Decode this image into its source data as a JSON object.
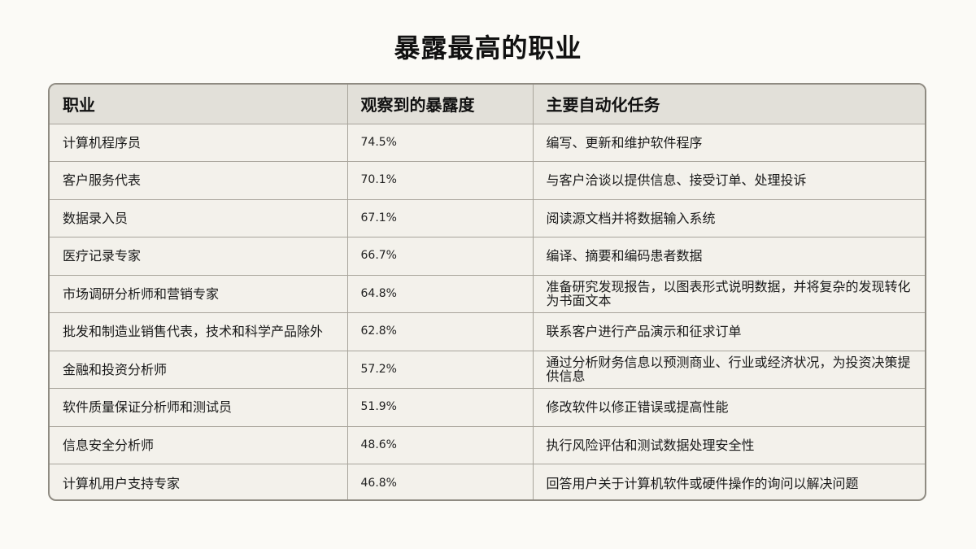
{
  "title": "暴露最高的职业",
  "table": {
    "headers": [
      "职业",
      "观察到的暴露度",
      "主要自动化任务"
    ],
    "rows": [
      {
        "occupation": "计算机程序员",
        "exposure": "74.5%",
        "tasks": "编写、更新和维护软件程序"
      },
      {
        "occupation": "客户服务代表",
        "exposure": "70.1%",
        "tasks": "与客户洽谈以提供信息、接受订单、处理投诉"
      },
      {
        "occupation": "数据录入员",
        "exposure": "67.1%",
        "tasks": "阅读源文档并将数据输入系统"
      },
      {
        "occupation": "医疗记录专家",
        "exposure": "66.7%",
        "tasks": "编译、摘要和编码患者数据"
      },
      {
        "occupation": "市场调研分析师和营销专家",
        "exposure": "64.8%",
        "tasks": "准备研究发现报告，以图表形式说明数据，并将复杂的发现转化为书面文本"
      },
      {
        "occupation": "批发和制造业销售代表，技术和科学产品除外",
        "exposure": "62.8%",
        "tasks": "联系客户进行产品演示和征求订单"
      },
      {
        "occupation": "金融和投资分析师",
        "exposure": "57.2%",
        "tasks": "通过分析财务信息以预测商业、行业或经济状况，为投资决策提供信息"
      },
      {
        "occupation": "软件质量保证分析师和测试员",
        "exposure": "51.9%",
        "tasks": "修改软件以修正错误或提高性能"
      },
      {
        "occupation": "信息安全分析师",
        "exposure": "48.6%",
        "tasks": "执行风险评估和测试数据处理安全性"
      },
      {
        "occupation": "计算机用户支持专家",
        "exposure": "46.8%",
        "tasks": "回答用户关于计算机软件或硬件操作的询问以解决问题"
      }
    ]
  }
}
